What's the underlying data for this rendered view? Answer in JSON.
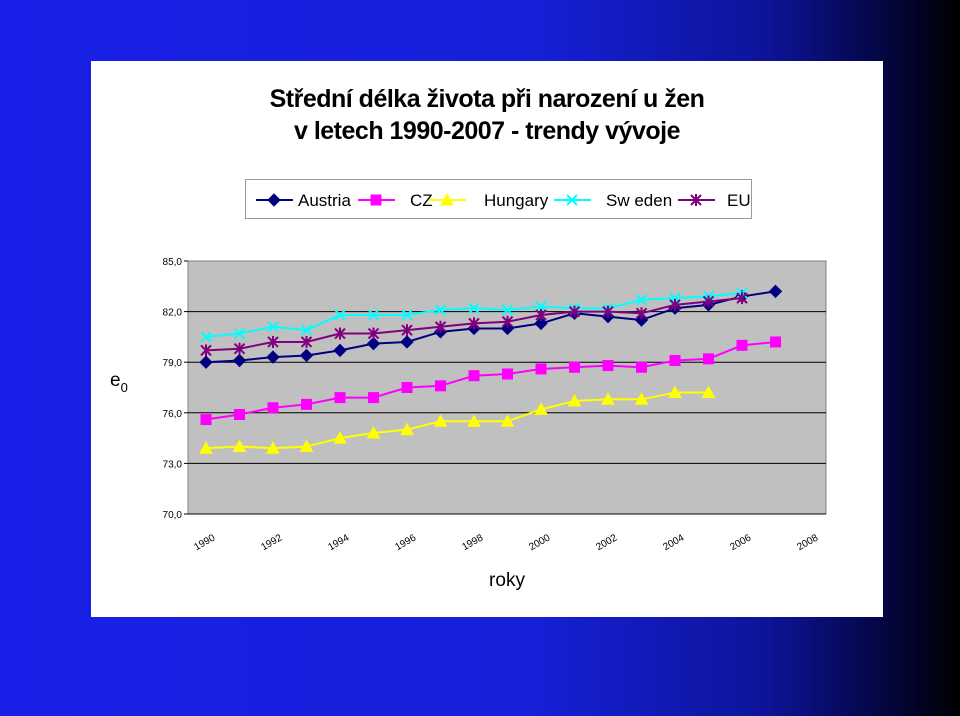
{
  "chart_data": {
    "type": "line",
    "title_lines": [
      "Střední délka života při narození u žen",
      "v letech 1990-2007 - trendy vývoje"
    ],
    "xlabel": "roky",
    "ylabel": "e",
    "ylabel_sub": "0",
    "ylim": [
      70,
      85
    ],
    "y_ticks": [
      "70,0",
      "73,0",
      "76,0",
      "79,0",
      "82,0",
      "85,0"
    ],
    "x_ticks": [
      "1990",
      "1992",
      "1994",
      "1996",
      "1998",
      "2000",
      "2002",
      "2004",
      "2006",
      "2008"
    ],
    "grid": true,
    "legend_position": "top",
    "x": [
      1990,
      1991,
      1992,
      1993,
      1994,
      1995,
      1996,
      1997,
      1998,
      1999,
      2000,
      2001,
      2002,
      2003,
      2004,
      2005,
      2006,
      2007
    ],
    "series": [
      {
        "name": "Austria",
        "color": "#000080",
        "marker": "diamond",
        "values": [
          79.0,
          79.1,
          79.3,
          79.4,
          79.7,
          80.1,
          80.2,
          80.8,
          81.0,
          81.0,
          81.3,
          81.9,
          81.7,
          81.5,
          82.2,
          82.4,
          82.9,
          83.2
        ]
      },
      {
        "name": "CZ",
        "color": "#ff00ff",
        "marker": "square",
        "values": [
          75.6,
          75.9,
          76.3,
          76.5,
          76.9,
          76.9,
          77.5,
          77.6,
          78.2,
          78.3,
          78.6,
          78.7,
          78.8,
          78.7,
          79.1,
          79.2,
          80.0,
          80.2
        ]
      },
      {
        "name": "Hungary",
        "color": "#ffff00",
        "marker": "triangle",
        "values": [
          73.9,
          74.0,
          73.9,
          74.0,
          74.5,
          74.8,
          75.0,
          75.5,
          75.5,
          75.5,
          76.2,
          76.7,
          76.8,
          76.8,
          77.2,
          77.2,
          null,
          null
        ]
      },
      {
        "name": "Sw eden",
        "color": "#00ffff",
        "marker": "x",
        "values": [
          80.5,
          80.7,
          81.1,
          80.9,
          81.8,
          81.8,
          81.8,
          82.1,
          82.2,
          82.1,
          82.3,
          82.2,
          82.2,
          82.7,
          82.8,
          82.9,
          83.1,
          null
        ]
      },
      {
        "name": "EU",
        "color": "#800080",
        "marker": "asterisk",
        "values": [
          79.7,
          79.8,
          80.2,
          80.2,
          80.7,
          80.7,
          80.9,
          81.1,
          81.3,
          81.4,
          81.8,
          82.0,
          82.0,
          81.9,
          82.4,
          82.6,
          82.8,
          null
        ]
      }
    ]
  }
}
